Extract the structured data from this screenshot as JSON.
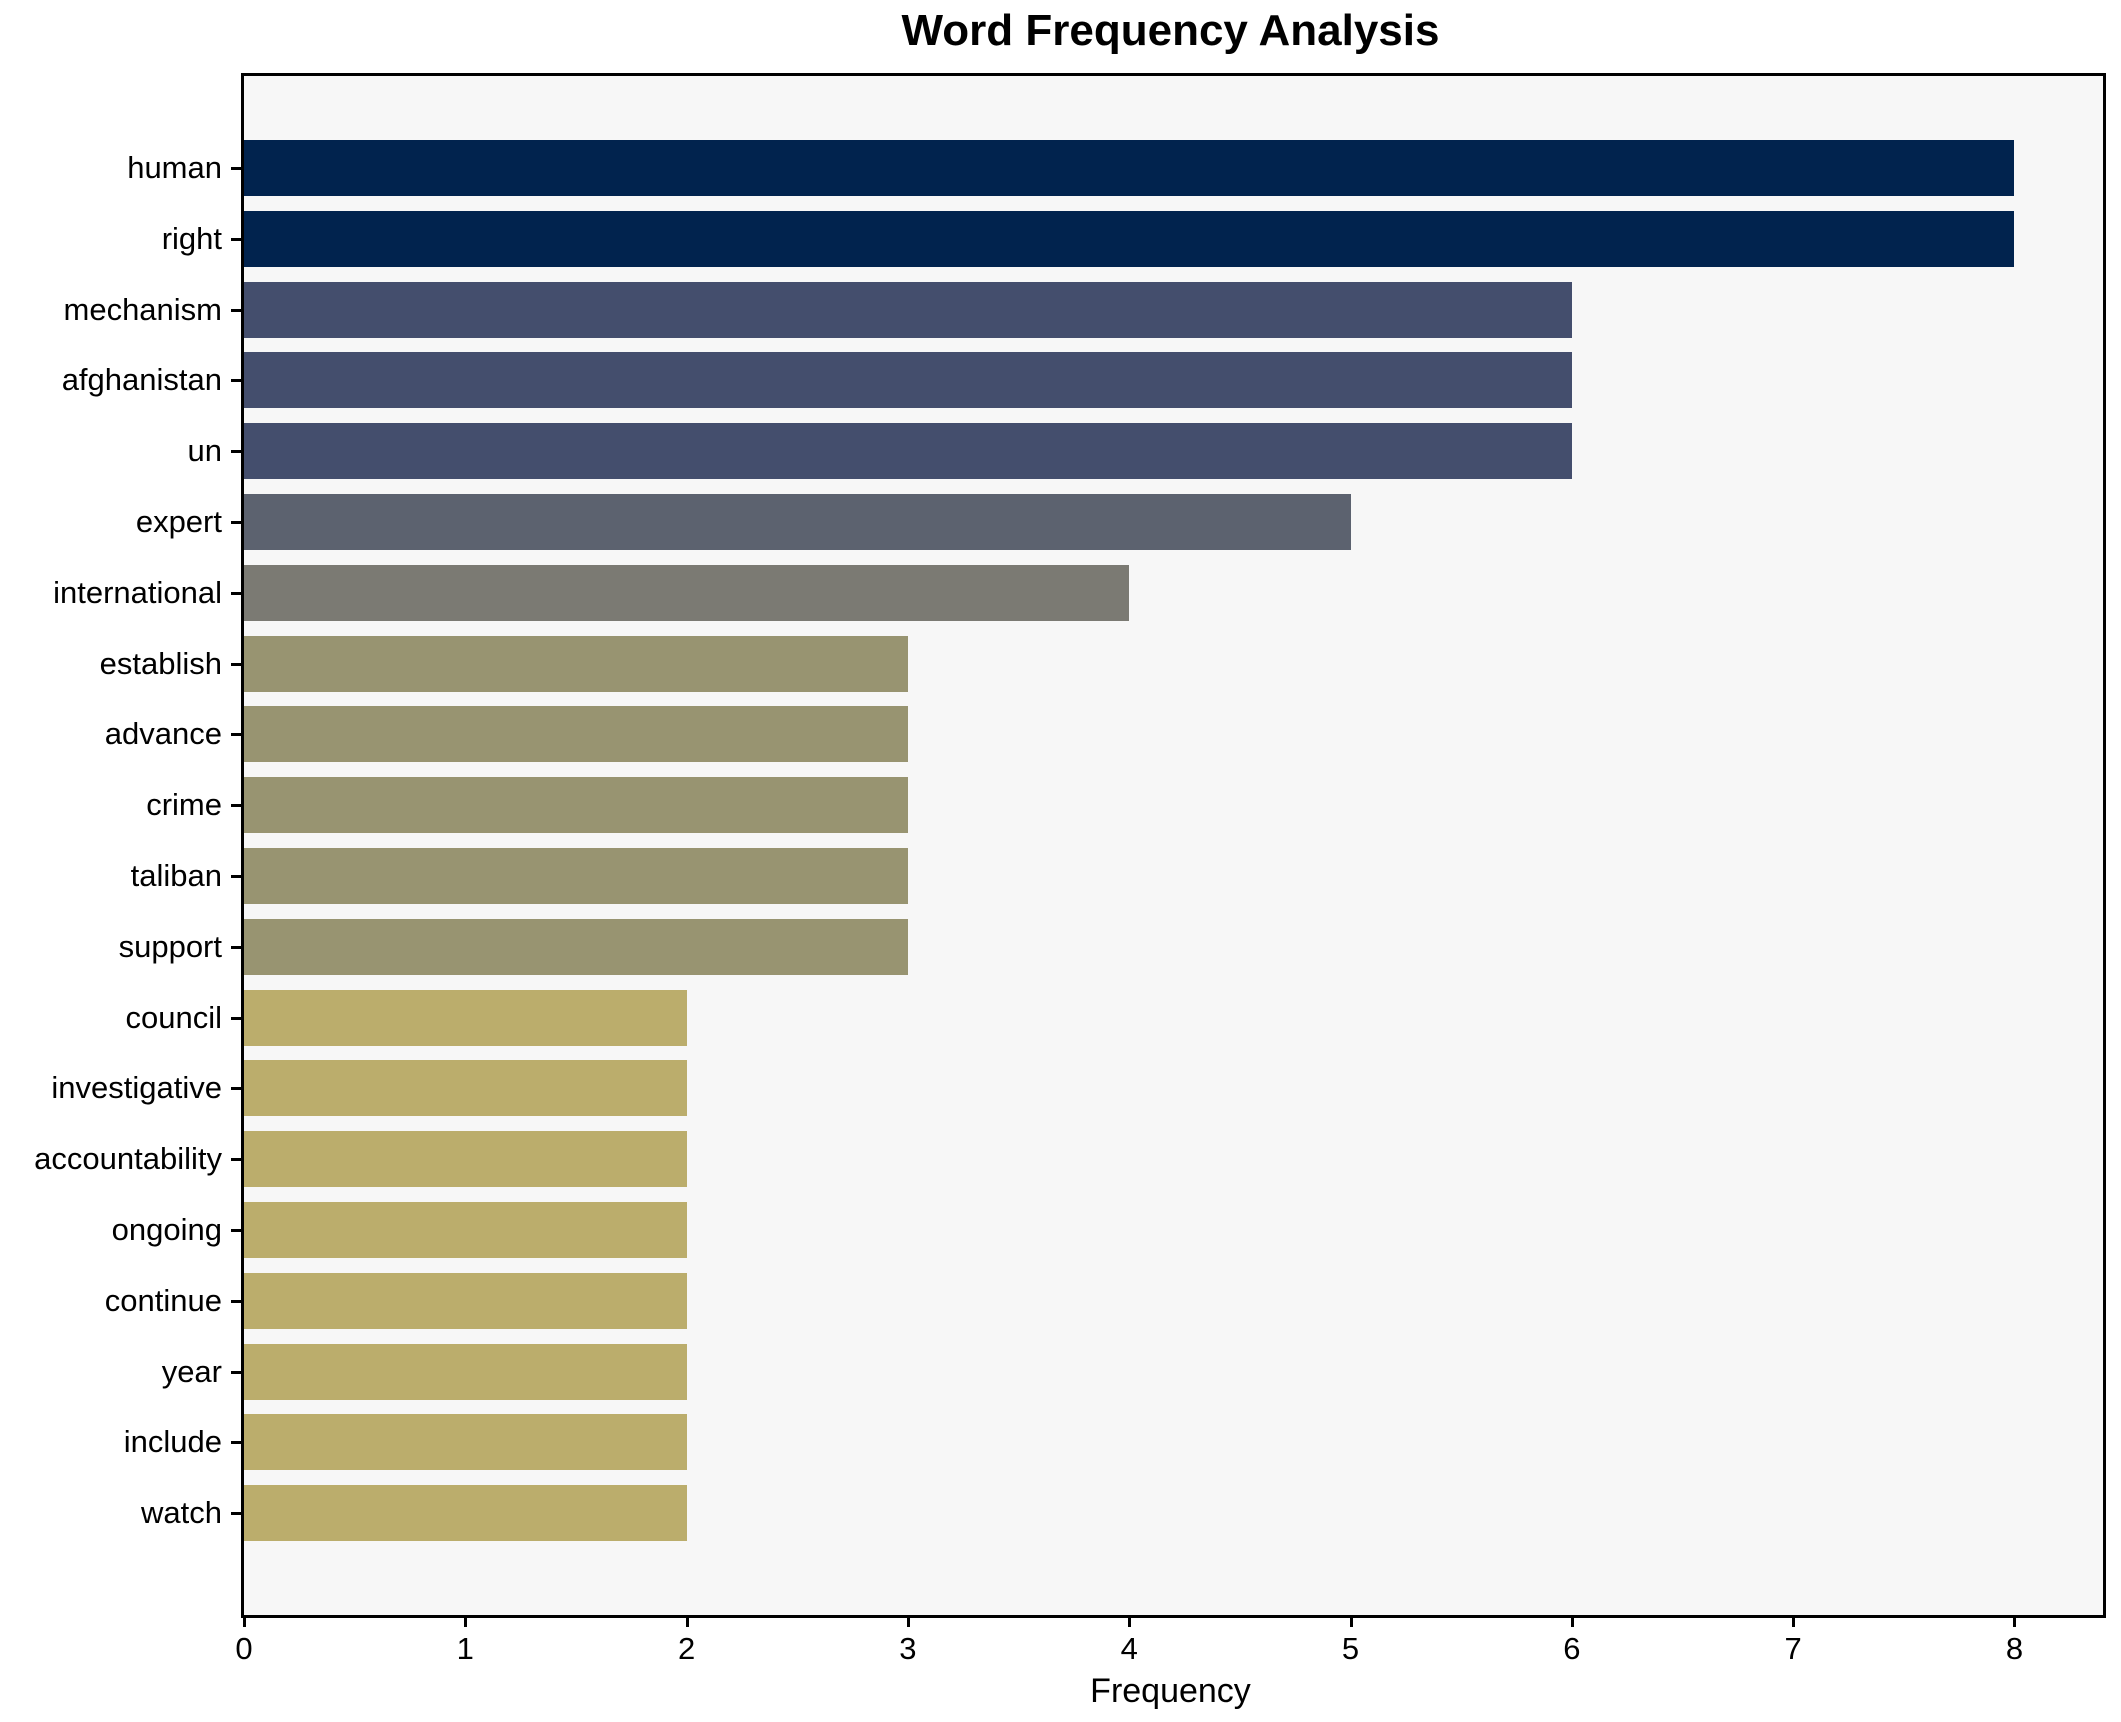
{
  "title": "Word Frequency Analysis",
  "xlabel": "Frequency",
  "chart_data": {
    "type": "bar",
    "orientation": "horizontal",
    "title": "Word Frequency Analysis",
    "xlabel": "Frequency",
    "ylabel": "",
    "categories": [
      "human",
      "right",
      "mechanism",
      "afghanistan",
      "un",
      "expert",
      "international",
      "establish",
      "advance",
      "crime",
      "taliban",
      "support",
      "council",
      "investigative",
      "accountability",
      "ongoing",
      "continue",
      "year",
      "include",
      "watch"
    ],
    "values": [
      8,
      8,
      6,
      6,
      6,
      5,
      4,
      3,
      3,
      3,
      3,
      3,
      2,
      2,
      2,
      2,
      2,
      2,
      2,
      2
    ],
    "xlim": [
      0,
      8.4
    ],
    "x_ticks": [
      0,
      1,
      2,
      3,
      4,
      5,
      6,
      7,
      8
    ],
    "grid": false,
    "legend": "none",
    "plot_background": "#f7f7f7",
    "figure_background": "#ffffff",
    "spine_color": "#000000",
    "bar_colors_by_value": {
      "8": "#01234e",
      "6": "#444e6d",
      "5": "#5c626f",
      "4": "#7b7a73",
      "3": "#989471",
      "2": "#bbad6c"
    }
  }
}
